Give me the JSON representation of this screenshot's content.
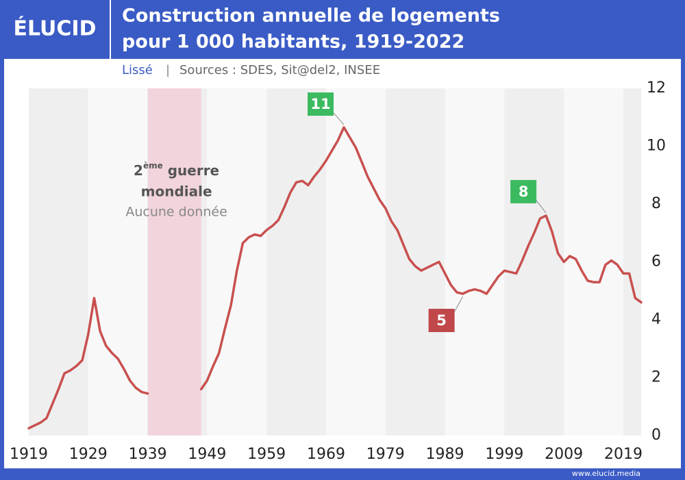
{
  "chart_data": {
    "type": "line",
    "brand": "ÉLUCID",
    "title": [
      "Construction annuelle de logements",
      "pour 1 000 habitants, 1919-2022"
    ],
    "subtitle": "Lissé",
    "source": "Sources : SDES, Sit@del2, INSEE",
    "footer": "www.elucid.media",
    "x": [
      1919,
      1920,
      1921,
      1922,
      1923,
      1924,
      1925,
      1926,
      1927,
      1928,
      1929,
      1930,
      1931,
      1932,
      1933,
      1934,
      1935,
      1936,
      1937,
      1938,
      1939,
      1940,
      1941,
      1942,
      1943,
      1944,
      1945,
      1946,
      1947,
      1948,
      1949,
      1950,
      1951,
      1952,
      1953,
      1954,
      1955,
      1956,
      1957,
      1958,
      1959,
      1960,
      1961,
      1962,
      1963,
      1964,
      1965,
      1966,
      1967,
      1968,
      1969,
      1970,
      1971,
      1972,
      1973,
      1974,
      1975,
      1976,
      1977,
      1978,
      1979,
      1980,
      1981,
      1982,
      1983,
      1984,
      1985,
      1986,
      1987,
      1988,
      1989,
      1990,
      1991,
      1992,
      1993,
      1994,
      1995,
      1996,
      1997,
      1998,
      1999,
      2000,
      2001,
      2002,
      2003,
      2004,
      2005,
      2006,
      2007,
      2008,
      2009,
      2010,
      2011,
      2012,
      2013,
      2014,
      2015,
      2016,
      2017,
      2018,
      2019,
      2020,
      2021,
      2022
    ],
    "series": [
      {
        "name": "Logements pour 1 000 habitants",
        "color": "#c8504f",
        "values": [
          0.25,
          0.35,
          0.45,
          0.6,
          1.1,
          1.6,
          2.15,
          2.25,
          2.4,
          2.6,
          3.5,
          4.75,
          3.6,
          3.1,
          2.85,
          2.65,
          2.3,
          1.9,
          1.65,
          1.5,
          1.45,
          null,
          null,
          null,
          null,
          null,
          null,
          null,
          null,
          1.6,
          1.9,
          2.4,
          2.85,
          3.7,
          4.5,
          5.7,
          6.65,
          6.85,
          6.95,
          6.9,
          7.1,
          7.25,
          7.45,
          7.9,
          8.4,
          8.75,
          8.8,
          8.65,
          8.95,
          9.2,
          9.5,
          9.85,
          10.2,
          10.65,
          10.3,
          9.95,
          9.45,
          8.95,
          8.55,
          8.15,
          7.85,
          7.4,
          7.1,
          6.6,
          6.1,
          5.85,
          5.7,
          5.8,
          5.9,
          6.0,
          5.6,
          5.2,
          4.95,
          4.9,
          5.0,
          5.05,
          5.0,
          4.9,
          5.2,
          5.5,
          5.7,
          5.65,
          5.6,
          6.05,
          6.55,
          7.0,
          7.5,
          7.6,
          7.05,
          6.3,
          6.0,
          6.2,
          6.1,
          5.7,
          5.35,
          5.3,
          5.3,
          5.9,
          6.05,
          5.9,
          5.6,
          5.6,
          4.75,
          4.6
        ]
      }
    ],
    "xlim": [
      1919,
      2022
    ],
    "xticks": [
      1919,
      1929,
      1939,
      1949,
      1959,
      1969,
      1979,
      1989,
      1999,
      2009,
      2019
    ],
    "ylim": [
      0,
      12
    ],
    "yticks": [
      0,
      2,
      4,
      6,
      8,
      10,
      12
    ],
    "shaded_region": {
      "start": 1939,
      "end": 1948,
      "color": "#f2d4dc",
      "label": [
        "2",
        "ème",
        " guerre",
        "mondiale"
      ],
      "note": "Aucune donnée"
    },
    "annotations": [
      {
        "label": "11",
        "x": 1972,
        "color": "#3cba5f"
      },
      {
        "label": "5",
        "x": 1992,
        "color": "#c0474a"
      },
      {
        "label": "8",
        "x": 2006,
        "color": "#3cba5f"
      }
    ]
  }
}
